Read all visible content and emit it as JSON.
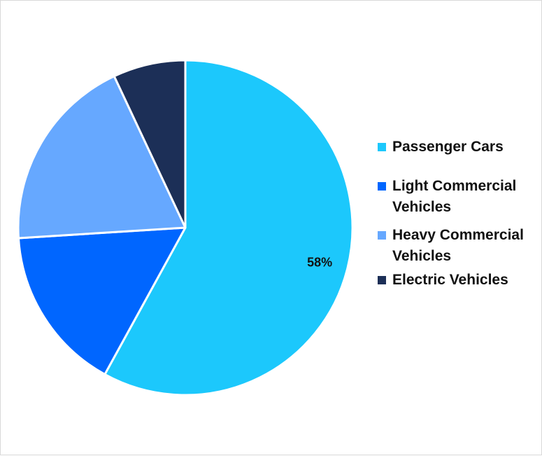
{
  "chart_data": {
    "type": "pie",
    "title": "",
    "categories": [
      "Passenger Cars",
      "Light Commercial Vehicles",
      "Heavy Commercial Vehicles",
      "Electric Vehicles"
    ],
    "values": [
      58,
      16,
      19,
      7
    ],
    "unit": "%",
    "colors": [
      "#1CC8FC",
      "#0066FF",
      "#66A8FF",
      "#1C2F57"
    ],
    "data_labels": [
      "58%",
      "",
      "",
      ""
    ],
    "legend_position": "right"
  }
}
